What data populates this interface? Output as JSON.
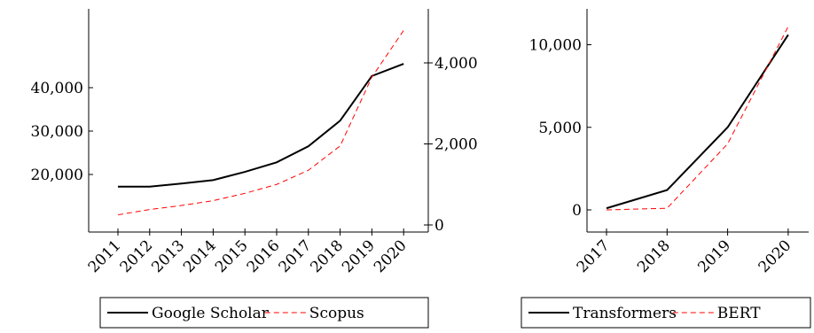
{
  "chart_data": [
    {
      "type": "line",
      "categories": [
        "2011",
        "2012",
        "2013",
        "2014",
        "2015",
        "2016",
        "2017",
        "2018",
        "2019",
        "2020"
      ],
      "series": [
        {
          "name": "Google Scholar",
          "axis": "left",
          "color": "#000000",
          "dash": "solid",
          "values": [
            17200,
            17200,
            17900,
            18700,
            20600,
            22800,
            26500,
            32400,
            42700,
            45500
          ]
        },
        {
          "name": "Scopus",
          "axis": "right",
          "color": "#ff0000",
          "dash": "dashed",
          "values": [
            250,
            380,
            480,
            600,
            780,
            1000,
            1350,
            1950,
            3650,
            4800
          ]
        }
      ],
      "yleft": {
        "ticks": [
          20000,
          30000,
          40000
        ],
        "tick_labels": [
          "20,000",
          "30,000",
          "40,000"
        ],
        "lim": [
          15000,
          49000
        ]
      },
      "yright": {
        "ticks": [
          0,
          2000,
          4000
        ],
        "tick_labels": [
          "0",
          "2,000",
          "4,000"
        ],
        "lim": [
          -100,
          5300
        ]
      },
      "legend_position": "bottom"
    },
    {
      "type": "line",
      "categories": [
        "2017",
        "2018",
        "2019",
        "2020"
      ],
      "series": [
        {
          "name": "Transformers",
          "color": "#000000",
          "dash": "solid",
          "values": [
            100,
            1200,
            5000,
            10600
          ]
        },
        {
          "name": "BERT",
          "color": "#ff0000",
          "dash": "dashed",
          "values": [
            0,
            100,
            4000,
            11100
          ]
        }
      ],
      "y": {
        "ticks": [
          0,
          5000,
          10000
        ],
        "tick_labels": [
          "0",
          "5,000",
          "10,000"
        ],
        "lim": [
          -500,
          12200
        ]
      },
      "legend_position": "bottom"
    }
  ]
}
